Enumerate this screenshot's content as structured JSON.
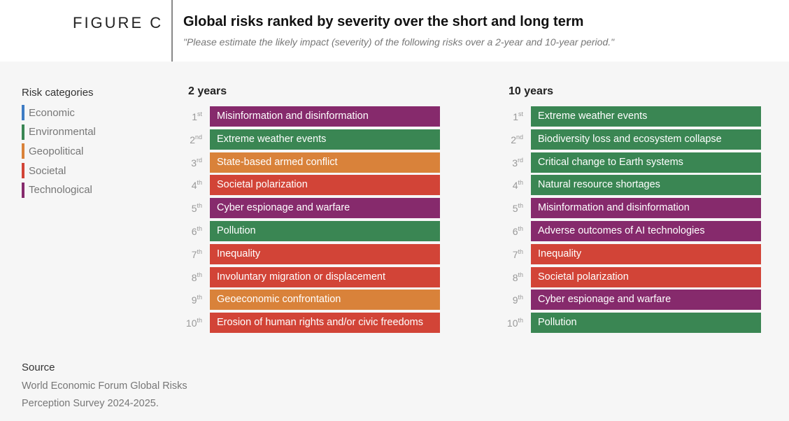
{
  "header": {
    "figure_label": "FIGURE C",
    "title": "Global risks ranked by severity over the short and long term",
    "subtitle": "\"Please estimate the likely impact (severity) of the following risks over a 2-year and 10-year period.\""
  },
  "colors": {
    "Economic": "#3e7cc4",
    "Environmental": "#3a8653",
    "Geopolitical": "#d9823a",
    "Societal": "#d24437",
    "Technological": "#862a6c"
  },
  "legend": {
    "title": "Risk categories",
    "items": [
      "Economic",
      "Environmental",
      "Geopolitical",
      "Societal",
      "Technological"
    ]
  },
  "chart_data": [
    {
      "type": "table",
      "title": "2 years",
      "ranks": [
        {
          "rank": "1",
          "suffix": "st",
          "label": "Misinformation and disinformation",
          "category": "Technological"
        },
        {
          "rank": "2",
          "suffix": "nd",
          "label": "Extreme weather events",
          "category": "Environmental"
        },
        {
          "rank": "3",
          "suffix": "rd",
          "label": "State-based armed conflict",
          "category": "Geopolitical"
        },
        {
          "rank": "4",
          "suffix": "th",
          "label": "Societal polarization",
          "category": "Societal"
        },
        {
          "rank": "5",
          "suffix": "th",
          "label": "Cyber espionage and warfare",
          "category": "Technological"
        },
        {
          "rank": "6",
          "suffix": "th",
          "label": "Pollution",
          "category": "Environmental"
        },
        {
          "rank": "7",
          "suffix": "th",
          "label": "Inequality",
          "category": "Societal"
        },
        {
          "rank": "8",
          "suffix": "th",
          "label": "Involuntary migration or displacement",
          "category": "Societal"
        },
        {
          "rank": "9",
          "suffix": "th",
          "label": "Geoeconomic confrontation",
          "category": "Geopolitical"
        },
        {
          "rank": "10",
          "suffix": "th",
          "label": "Erosion of human rights and/or civic freedoms",
          "category": "Societal"
        }
      ]
    },
    {
      "type": "table",
      "title": "10 years",
      "ranks": [
        {
          "rank": "1",
          "suffix": "st",
          "label": "Extreme weather events",
          "category": "Environmental"
        },
        {
          "rank": "2",
          "suffix": "nd",
          "label": "Biodiversity loss and ecosystem collapse",
          "category": "Environmental"
        },
        {
          "rank": "3",
          "suffix": "rd",
          "label": "Critical change to Earth systems",
          "category": "Environmental"
        },
        {
          "rank": "4",
          "suffix": "th",
          "label": "Natural resource shortages",
          "category": "Environmental"
        },
        {
          "rank": "5",
          "suffix": "th",
          "label": "Misinformation and disinformation",
          "category": "Technological"
        },
        {
          "rank": "6",
          "suffix": "th",
          "label": "Adverse outcomes of AI technologies",
          "category": "Technological"
        },
        {
          "rank": "7",
          "suffix": "th",
          "label": "Inequality",
          "category": "Societal"
        },
        {
          "rank": "8",
          "suffix": "th",
          "label": "Societal polarization",
          "category": "Societal"
        },
        {
          "rank": "9",
          "suffix": "th",
          "label": "Cyber espionage and warfare",
          "category": "Technological"
        },
        {
          "rank": "10",
          "suffix": "th",
          "label": "Pollution",
          "category": "Environmental"
        }
      ]
    }
  ],
  "source": {
    "title": "Source",
    "lines": [
      "World Economic Forum Global Risks",
      "Perception Survey 2024-2025."
    ]
  }
}
